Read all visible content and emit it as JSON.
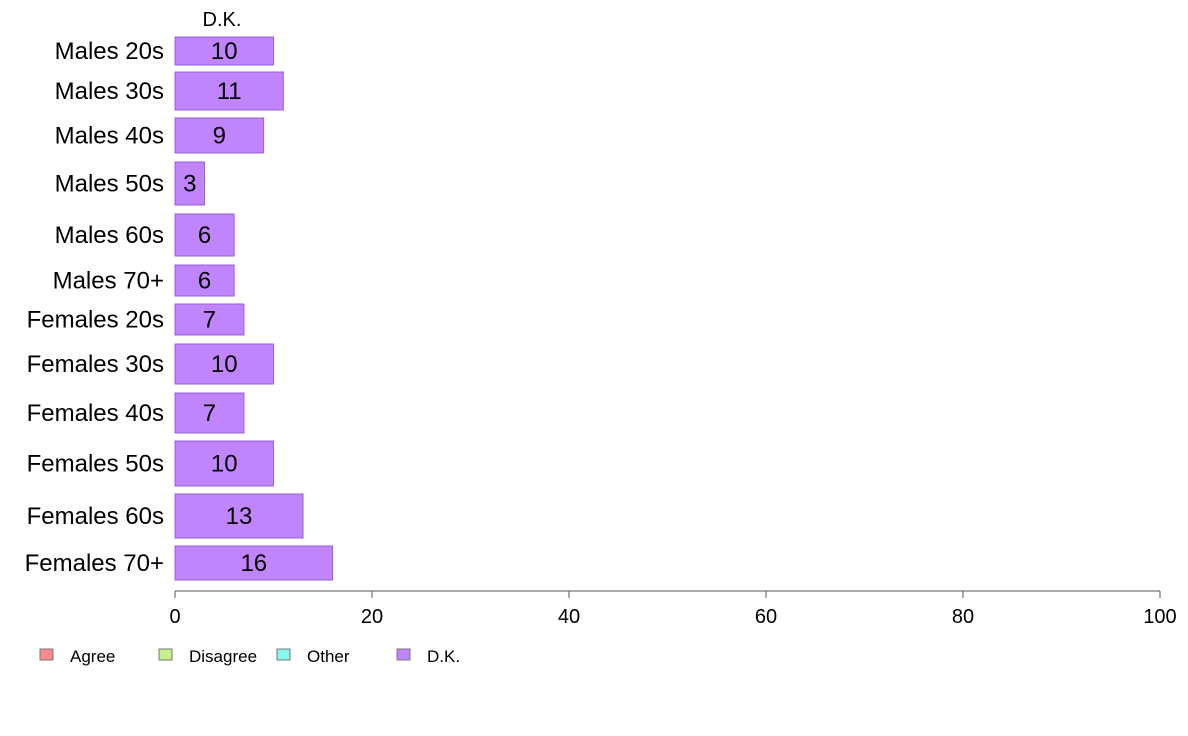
{
  "chart_data": {
    "type": "bar",
    "orientation": "horizontal",
    "stacked": true,
    "column_header": "D.K.",
    "categories": [
      "Males 20s",
      "Males 30s",
      "Males 40s",
      "Males 50s",
      "Males 60s",
      "Males 70+",
      "Females 20s",
      "Females 30s",
      "Females 40s",
      "Females 50s",
      "Females 60s",
      "Females 70+"
    ],
    "series": [
      {
        "name": "D.K.",
        "color": "#c084fc",
        "values": [
          10,
          11,
          9,
          3,
          6,
          6,
          7,
          10,
          7,
          10,
          13,
          16
        ]
      }
    ],
    "data_labels": [
      "10",
      "11",
      "9",
      "3",
      "6",
      "6",
      "7",
      "10",
      "7",
      "10",
      "13",
      "16"
    ],
    "xlim": [
      0,
      100
    ],
    "xticks": [
      "0",
      "20",
      "40",
      "60",
      "80",
      "100"
    ],
    "grid": false,
    "legend": {
      "placement": "bottom-left",
      "entries": [
        {
          "label": "Agree",
          "color": "#f88a8a"
        },
        {
          "label": "Disagree",
          "color": "#c6f08a"
        },
        {
          "label": "Other",
          "color": "#86f6f0"
        },
        {
          "label": "D.K.",
          "color": "#c084fc"
        }
      ]
    }
  }
}
